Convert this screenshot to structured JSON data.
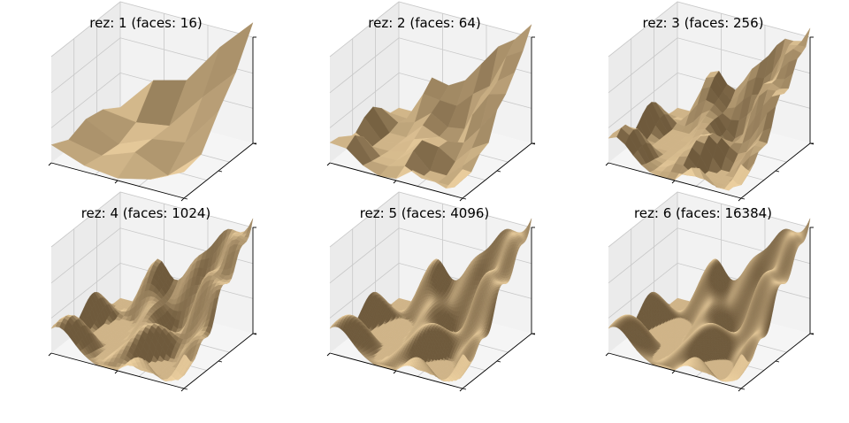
{
  "figure": {
    "layout": "2x3 grid of 3D surface plots"
  },
  "chart_data": [
    {
      "type": "surface3d",
      "title": "rez: 1 (faces: 16)",
      "rez": 1,
      "faces": 16,
      "grid": true,
      "x_tick_labels": [],
      "y_tick_labels": [],
      "z_tick_labels": []
    },
    {
      "type": "surface3d",
      "title": "rez: 2 (faces: 64)",
      "rez": 2,
      "faces": 64,
      "grid": true,
      "x_tick_labels": [],
      "y_tick_labels": [],
      "z_tick_labels": []
    },
    {
      "type": "surface3d",
      "title": "rez: 3 (faces: 256)",
      "rez": 3,
      "faces": 256,
      "grid": true,
      "x_tick_labels": [],
      "y_tick_labels": [],
      "z_tick_labels": []
    },
    {
      "type": "surface3d",
      "title": "rez: 4 (faces: 1024)",
      "rez": 4,
      "faces": 1024,
      "grid": true,
      "x_tick_labels": [],
      "y_tick_labels": [],
      "z_tick_labels": []
    },
    {
      "type": "surface3d",
      "title": "rez: 5 (faces: 4096)",
      "rez": 5,
      "faces": 4096,
      "grid": true,
      "x_tick_labels": [],
      "y_tick_labels": [],
      "z_tick_labels": []
    },
    {
      "type": "surface3d",
      "title": "rez: 6 (faces: 16384)",
      "rez": 6,
      "faces": 16384,
      "grid": true,
      "x_tick_labels": [],
      "y_tick_labels": [],
      "z_tick_labels": []
    }
  ],
  "colors": {
    "surface_light": "#f0d3a2",
    "surface_dark": "#6f5a3c",
    "pane": "#f2f2f2",
    "grid": "#c8c8c8",
    "axis": "#000000"
  }
}
